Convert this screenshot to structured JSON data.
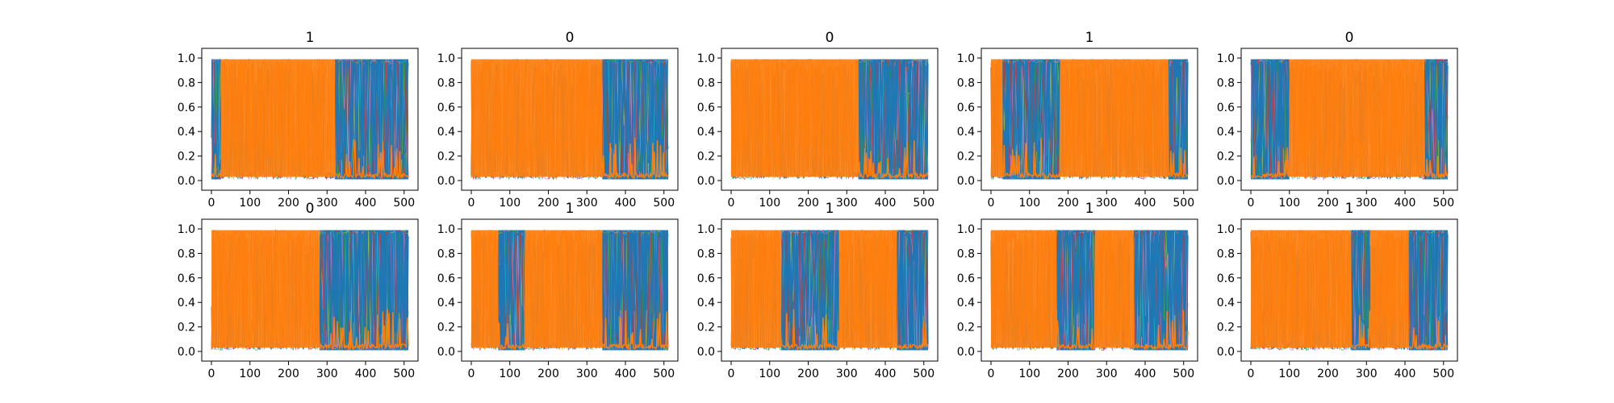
{
  "chart_data": {
    "type": "line",
    "layout": "2x5 grid of subplots",
    "xlim": [
      0,
      511
    ],
    "ylim": [
      0,
      1
    ],
    "xticks": [
      "0",
      "100",
      "200",
      "300",
      "400",
      "500"
    ],
    "yticks": [
      "0.0",
      "0.2",
      "0.4",
      "0.6",
      "0.8",
      "1.0"
    ],
    "colors": {
      "dominant_blue": "#1f77b4",
      "dominant_orange": "#ff7f0e",
      "minor": [
        "#17becf",
        "#bcbd22",
        "#9467bd",
        "#2ca02c",
        "#e377c2",
        "#d62728"
      ]
    },
    "panels": [
      {
        "title": "1",
        "blue_segments": [
          [
            0,
            25
          ],
          [
            320,
            511
          ]
        ],
        "orange_segments": [
          [
            25,
            320
          ]
        ]
      },
      {
        "title": "0",
        "blue_segments": [
          [
            340,
            511
          ]
        ],
        "orange_segments": [
          [
            0,
            340
          ]
        ]
      },
      {
        "title": "0",
        "blue_segments": [
          [
            330,
            511
          ]
        ],
        "orange_segments": [
          [
            0,
            330
          ]
        ]
      },
      {
        "title": "1",
        "blue_segments": [
          [
            30,
            180
          ],
          [
            460,
            511
          ]
        ],
        "orange_segments": [
          [
            0,
            30
          ],
          [
            180,
            460
          ]
        ]
      },
      {
        "title": "0",
        "blue_segments": [
          [
            0,
            100
          ],
          [
            450,
            511
          ]
        ],
        "orange_segments": [
          [
            100,
            450
          ]
        ]
      },
      {
        "title": "0",
        "blue_segments": [
          [
            280,
            511
          ]
        ],
        "orange_segments": [
          [
            0,
            280
          ]
        ]
      },
      {
        "title": "1",
        "blue_segments": [
          [
            70,
            140
          ],
          [
            340,
            511
          ]
        ],
        "orange_segments": [
          [
            0,
            70
          ],
          [
            140,
            340
          ]
        ]
      },
      {
        "title": "1",
        "blue_segments": [
          [
            130,
            280
          ],
          [
            430,
            511
          ]
        ],
        "orange_segments": [
          [
            0,
            130
          ],
          [
            280,
            430
          ]
        ]
      },
      {
        "title": "1",
        "blue_segments": [
          [
            170,
            270
          ],
          [
            370,
            511
          ]
        ],
        "orange_segments": [
          [
            0,
            170
          ],
          [
            270,
            370
          ]
        ]
      },
      {
        "title": "1",
        "blue_segments": [
          [
            260,
            310
          ],
          [
            410,
            511
          ]
        ],
        "orange_segments": [
          [
            0,
            260
          ],
          [
            310,
            410
          ]
        ]
      }
    ]
  }
}
